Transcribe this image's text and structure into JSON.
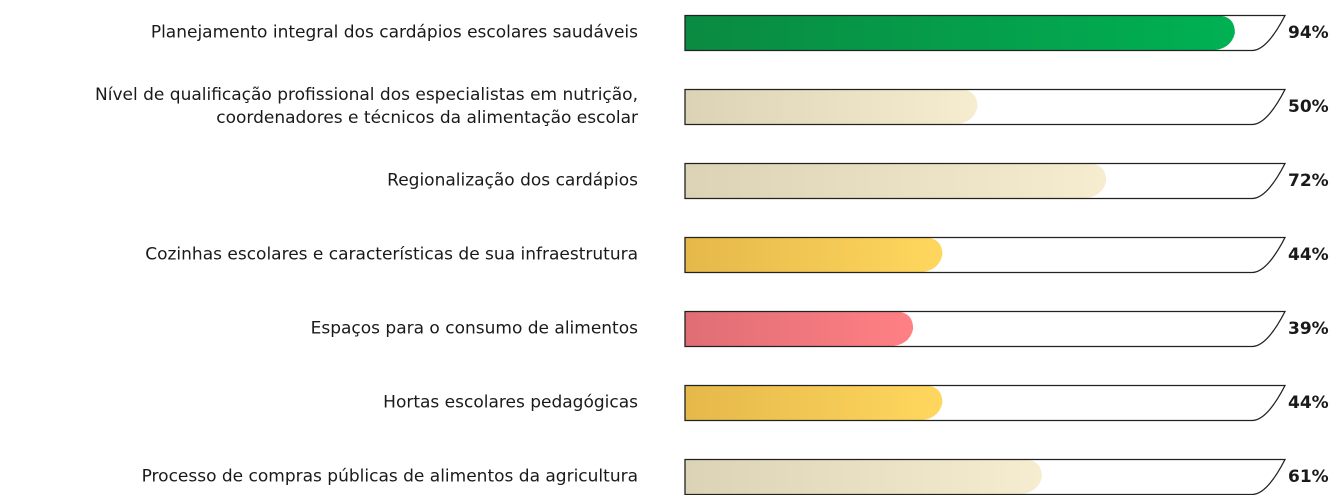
{
  "chart_data": {
    "type": "bar",
    "categories": [
      "Planejamento integral dos cardápios escolares saudáveis",
      "Nível de qualificação profissional dos especialistas em nutrição,\ncoordenadores e técnicos da alimentação escolar",
      "Regionalização dos cardápios",
      "Cozinhas escolares e características de sua infraestrutura",
      "Espaços para o consumo de alimentos",
      "Hortas escolares pedagógicas",
      "Processo de compras públicas de alimentos da agricultura"
    ],
    "values": [
      94,
      50,
      72,
      44,
      39,
      44,
      61
    ],
    "value_labels": [
      "94%",
      "50%",
      "72%",
      "44%",
      "39%",
      "44%",
      "61%"
    ],
    "colors": [
      [
        "#0a8a42",
        "#00b152"
      ],
      [
        "#dcd2b6",
        "#f6ecd0"
      ],
      [
        "#dcd2b6",
        "#f6ecd0"
      ],
      [
        "#e5b84a",
        "#ffd75e"
      ],
      [
        "#df6e74",
        "#ff8085"
      ],
      [
        "#e5b84a",
        "#ffd75e"
      ],
      [
        "#dcd2b6",
        "#f6ecd0"
      ]
    ],
    "xlim": [
      0,
      100
    ]
  }
}
